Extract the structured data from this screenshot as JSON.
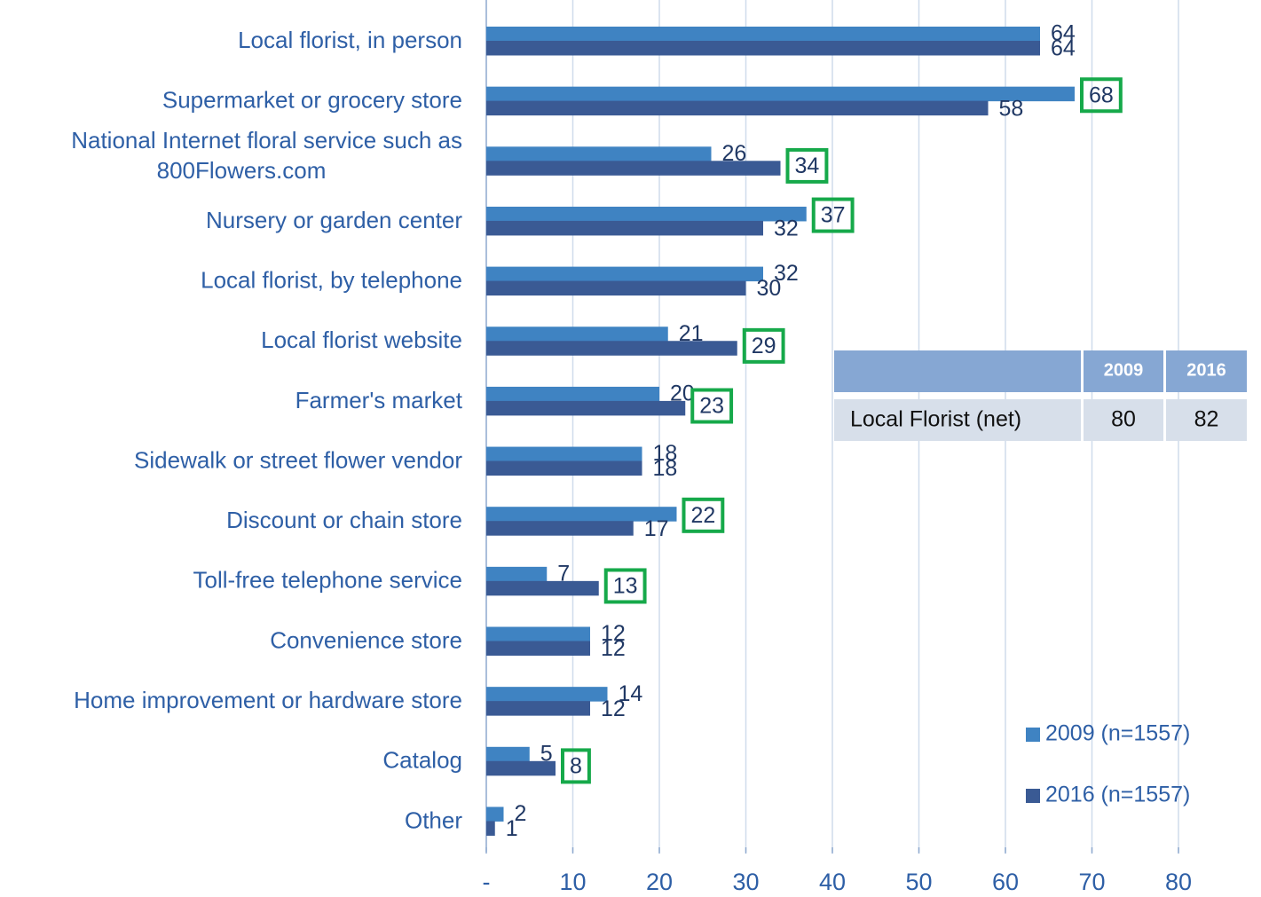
{
  "chart_data": {
    "type": "hbar",
    "categories": [
      "Local florist, in person",
      "Supermarket or grocery store",
      [
        "National Internet floral service such as",
        "800Flowers.com"
      ],
      "Nursery or garden center",
      "Local florist, by telephone",
      "Local florist website",
      "Farmer's market",
      "Sidewalk or street flower vendor",
      "Discount or chain store",
      "Toll-free telephone service",
      "Convenience store",
      "Home improvement or hardware store",
      "Catalog",
      "Other"
    ],
    "series": [
      {
        "name": "2009 (n=1557)",
        "color": "#3f83c2",
        "values": [
          64,
          68,
          26,
          37,
          32,
          21,
          20,
          18,
          22,
          7,
          12,
          14,
          5,
          2
        ],
        "highlight_indices": [
          1,
          3,
          8
        ]
      },
      {
        "name": "2016 (n=1557)",
        "color": "#3a5a94",
        "values": [
          64,
          58,
          34,
          32,
          30,
          29,
          23,
          18,
          17,
          13,
          12,
          12,
          8,
          1
        ],
        "highlight_indices": [
          2,
          5,
          6,
          9,
          12
        ]
      }
    ],
    "xlim": [
      0,
      88
    ],
    "xticks": [
      {
        "value": 0,
        "label": "-"
      },
      10,
      20,
      30,
      40,
      50,
      60,
      70,
      80
    ],
    "grid": true,
    "legend": "lower right",
    "table": {
      "header": [
        "2009",
        "2016"
      ],
      "rows": [
        [
          "Local Florist (net)",
          "80",
          "82"
        ]
      ]
    }
  }
}
